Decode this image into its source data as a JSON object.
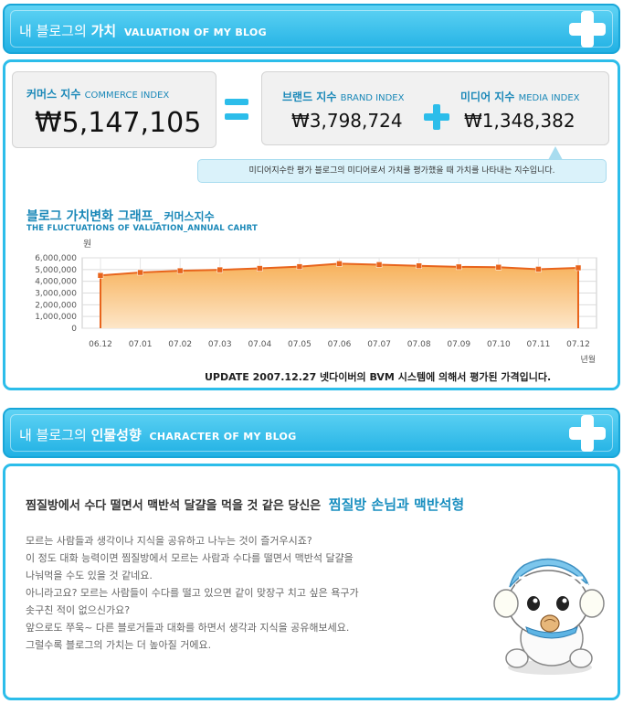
{
  "valuation_banner": {
    "title_ko_prefix": "내 블로그의",
    "title_ko_bold": "가치",
    "title_en": "VALUATION OF MY BLOG"
  },
  "commerce": {
    "label_ko": "커머스 지수",
    "label_en": "COMMERCE INDEX",
    "value": "₩5,147,105"
  },
  "brand": {
    "label_ko": "브랜드 지수",
    "label_en": "BRAND INDEX",
    "value": "₩3,798,724"
  },
  "media": {
    "label_ko": "미디어 지수",
    "label_en": "MEDIA INDEX",
    "value": "₩1,348,382"
  },
  "media_tooltip": "미디어지수란 평가 블로그의 미디어로서 가치를 평가했을 때 가치를 나타내는 지수입니다.",
  "graph": {
    "title": "블로그 가치변화 그래프_",
    "title_sub": "커머스지수",
    "subtitle": "THE FLUCTUATIONS OF VALUATION_ANNUAL CAHRT"
  },
  "chart_data": {
    "type": "area",
    "title": "블로그 가치변화 그래프_ 커머스지수",
    "ylabel": "원",
    "xlabel": "년월",
    "categories": [
      "06.12",
      "07.01",
      "07.02",
      "07.03",
      "07.04",
      "07.05",
      "07.06",
      "07.07",
      "07.08",
      "07.09",
      "07.10",
      "07.11",
      "07.12"
    ],
    "series": [
      {
        "values": [
          4500000,
          4750000,
          4900000,
          4980000,
          5100000,
          5250000,
          5500000,
          5420000,
          5320000,
          5230000,
          5200000,
          5030000,
          5147105
        ]
      }
    ],
    "yticks": [
      "6,000,000",
      "5,000,000",
      "4,000,000",
      "3,000,000",
      "2,000,000",
      "1,000,000",
      "0"
    ],
    "ylim": [
      0,
      6000000
    ],
    "grid": true,
    "line_color": "#e8641c",
    "fill_top": "#f7b15a",
    "fill_bottom": "#fde6c8"
  },
  "update_note": "UPDATE 2007.12.27 넷다이버의 BVM 시스템에 의해서 평가된 가격입니다.",
  "character_banner": {
    "title_ko_prefix": "내 블로그의",
    "title_ko_bold": "인물성향",
    "title_en": "CHARACTER OF MY BLOG"
  },
  "character": {
    "heading": "찜질방에서 수다 떨면서 맥반석 달걀을 먹을 것 같은 당신은",
    "highlight": "찜질방 손님과 맥반석형",
    "lines": [
      "모르는 사람들과 생각이나 지식을 공유하고 나누는 것이 즐거우시죠?",
      "이 정도 대화 능력이면 찜질방에서 모르는 사람과 수다를 떨면서 맥반석 달걀을",
      "나눠먹을 수도 있을 것 같네요.",
      "아니라고요? 모르는 사람들이 수다를 떨고 있으면 같이 맞장구 치고 싶은 욕구가",
      "솟구친 적이 없으신가요?",
      "앞으로도 쭈욱~ 다른 블로거들과 대화를 하면서 생각과 지식을 공유해보세요.",
      "그럴수록 블로그의 가치는 더 높아질 거에요."
    ]
  },
  "colors": {
    "accent": "#2cbdea",
    "title_blue": "#1a88b8"
  }
}
